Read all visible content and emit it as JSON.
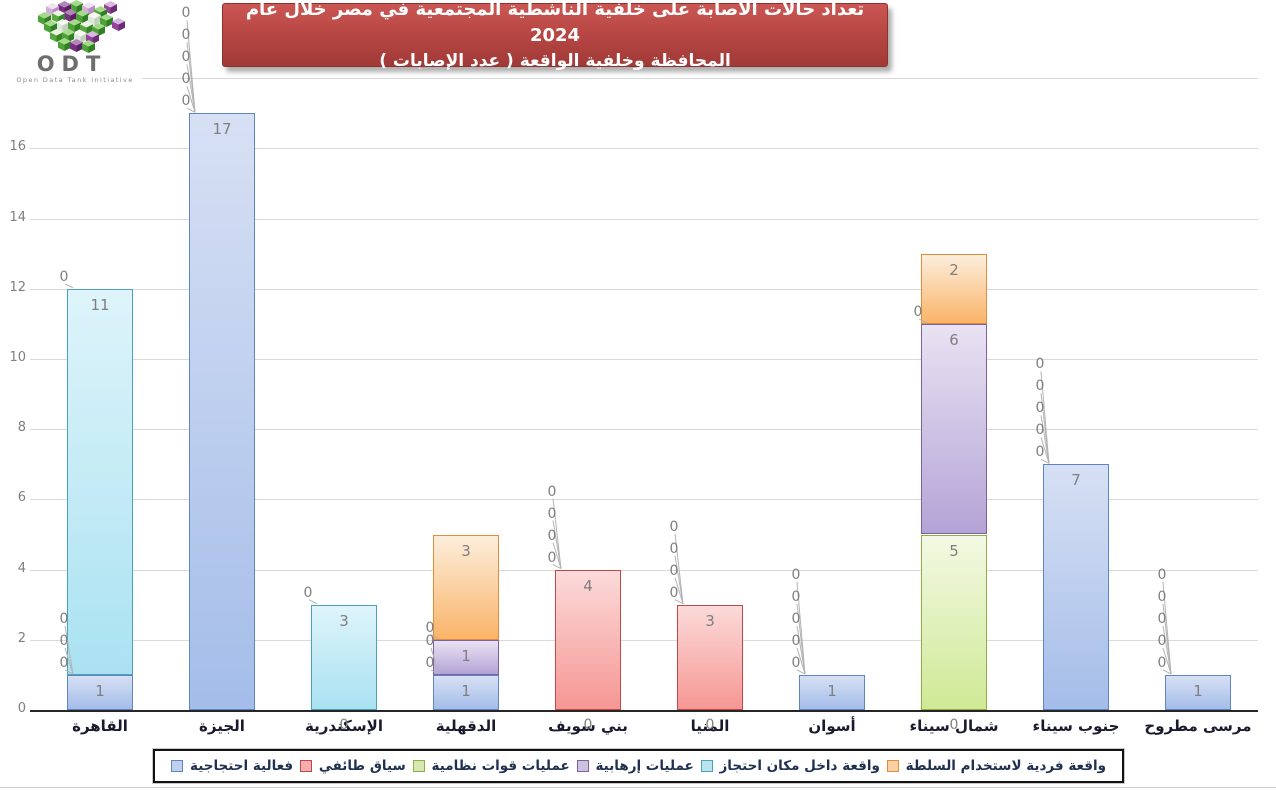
{
  "logo": {
    "text": "ODT",
    "subtitle": "Open Data Tank Initiative"
  },
  "title": {
    "line1": "تعداد حالات الاصابة على خلفية الناشطية المجتمعية في مصر خلال عام 2024",
    "line2": "المحافظة وخلفية الواقعة ( عدد الإصابات )"
  },
  "colors": {
    "title_bg": "#b94744",
    "title_text": "#ffffff",
    "gridline": "#d9d9d9",
    "axis": "#262626",
    "data_label": "#7f7f7f"
  },
  "chart_data": {
    "type": "bar",
    "stacked": true,
    "orientation": "vertical",
    "title": "تعداد حالات الاصابة على خلفية الناشطية المجتمعية في مصر خلال عام 2024 المحافظة وخلفية الواقعة ( عدد الإصابات )",
    "categories": [
      "القاهرة",
      "الجيزة",
      "الإسكندرية",
      "الدقهلية",
      "بني سويف",
      "المنيا",
      "أسوان",
      "شمال سيناء",
      "جنوب سيناء",
      "مرسى مطروح"
    ],
    "series": [
      {
        "name": "فعالية احتجاجية",
        "color": "#4f81bd",
        "fill_light": "#d7e0f4",
        "fill_dark": "#a4bde9",
        "border": "#5f86c4",
        "swatch_fill": "#bdd0ec",
        "values": [
          1,
          17,
          0,
          1,
          0,
          0,
          1,
          0,
          7,
          1
        ]
      },
      {
        "name": "سياق طائفي",
        "color": "#c0504d",
        "fill_light": "#fbdad9",
        "fill_dark": "#f69794",
        "border": "#bd4845",
        "swatch_fill": "#f4aead",
        "values": [
          0,
          0,
          0,
          0,
          4,
          3,
          0,
          0,
          0,
          0
        ]
      },
      {
        "name": "عمليات قوات نظامية",
        "color": "#9bbb59",
        "fill_light": "#f3f9e3",
        "fill_dark": "#cfe996",
        "border": "#8fae44",
        "swatch_fill": "#d9e8b2",
        "values": [
          0,
          0,
          0,
          0,
          0,
          0,
          0,
          5,
          0,
          0
        ]
      },
      {
        "name": "عمليات إرهابية",
        "color": "#8064a2",
        "fill_light": "#e9e3f3",
        "fill_dark": "#b4a3d6",
        "border": "#7c60a0",
        "swatch_fill": "#cdc1e0",
        "values": [
          0,
          0,
          0,
          1,
          0,
          0,
          0,
          6,
          0,
          0
        ]
      },
      {
        "name": "واقعة داخل مكان احتجاز",
        "color": "#4bacc6",
        "fill_light": "#def4fa",
        "fill_dark": "#aae2f2",
        "border": "#4aa2bd",
        "swatch_fill": "#b9e3f0",
        "values": [
          11,
          0,
          3,
          0,
          0,
          0,
          0,
          0,
          0,
          0
        ]
      },
      {
        "name": "واقعة فردية لاستخدام السلطة",
        "color": "#f79646",
        "fill_light": "#fceedc",
        "fill_dark": "#fab469",
        "border": "#e18c3a",
        "swatch_fill": "#fbd0a3",
        "values": [
          0,
          0,
          0,
          3,
          0,
          0,
          0,
          2,
          0,
          0
        ]
      }
    ],
    "y_ticks": [
      0,
      2,
      4,
      6,
      8,
      10,
      12,
      14,
      16
    ],
    "y_gridlines": [
      2,
      4,
      6,
      8,
      10,
      12,
      14,
      16,
      18
    ],
    "ylim": [
      0,
      18
    ],
    "xlabel": "",
    "ylabel": "",
    "grid": true,
    "data_labels": "all values shown, zeros with leader lines",
    "legend_position": "bottom"
  }
}
